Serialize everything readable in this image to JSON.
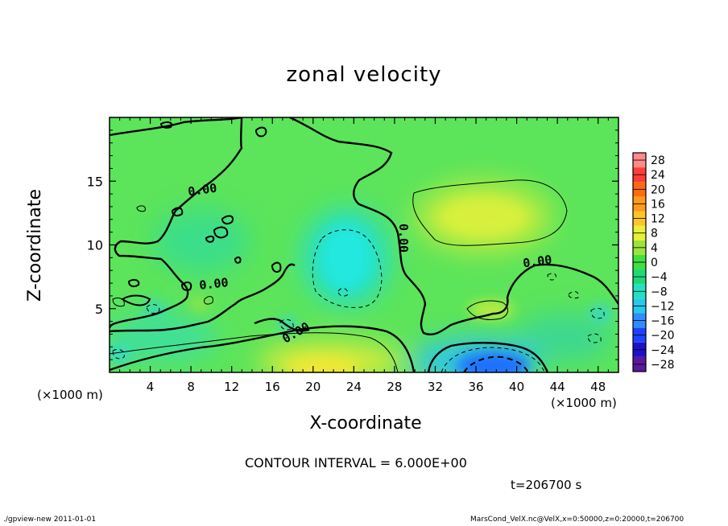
{
  "chart_data": {
    "type": "heatmap",
    "title": "zonal velocity",
    "xlabel": "X-coordinate",
    "ylabel": "Z-coordinate",
    "x_unit_left": "(×1000 m)",
    "x_unit_right": "(×1000 m)",
    "xlim": [
      0,
      50
    ],
    "ylim": [
      0,
      20
    ],
    "x_ticks": [
      4,
      8,
      12,
      16,
      20,
      24,
      28,
      32,
      36,
      40,
      44,
      48
    ],
    "y_ticks": [
      5,
      10,
      15
    ],
    "colorbar": {
      "ticks": [
        28,
        24,
        20,
        16,
        12,
        8,
        4,
        0,
        -4,
        -8,
        -12,
        -16,
        -20,
        -24,
        -28
      ],
      "levels": [
        -30,
        -26,
        -22,
        -18,
        -14,
        -10,
        -6,
        -2,
        2,
        6,
        10,
        14,
        18,
        22,
        26,
        30
      ],
      "colors": [
        "#5a189a",
        "#1f0fc8",
        "#2040ff",
        "#2f8cff",
        "#28c8e8",
        "#24e0c2",
        "#1ed878",
        "#40e040",
        "#9ce43a",
        "#e8f03a",
        "#ffc42a",
        "#ff9a1a",
        "#ff6a0e",
        "#ff3c3c",
        "#ff8a8a"
      ]
    },
    "contour_interval_label": "CONTOUR INTERVAL = 6.000E+00",
    "contour_labels": [
      "0.00",
      "0.00",
      "0.00",
      "0.00",
      "0.00"
    ],
    "features": [
      {
        "x": 24,
        "z": 9.5,
        "value": -7,
        "note": "cyan negative"
      },
      {
        "x": 38,
        "z": 0.3,
        "value": -17,
        "note": "blue minimum"
      },
      {
        "x": 18,
        "z": 0.4,
        "value": 10,
        "note": "yellow maximum"
      },
      {
        "x": 35,
        "z": 12.5,
        "value": 6.5,
        "note": "yellow-green positive"
      },
      {
        "x": 38,
        "z": 5,
        "value": 7,
        "note": "yellow-green positive"
      }
    ]
  },
  "annotations": {
    "time": "t=206700 s",
    "footer_left": "./gpview-new   2011-01-01",
    "footer_right": "MarsCond_VelX.nc@VelX,x=0:50000,z=0:20000,t=206700"
  },
  "colors": {
    "background_green": "#66e85c",
    "positive_yellow": "#e8f03a",
    "negative_cyan": "#28d8e0",
    "negative_blue": "#2050f0"
  }
}
